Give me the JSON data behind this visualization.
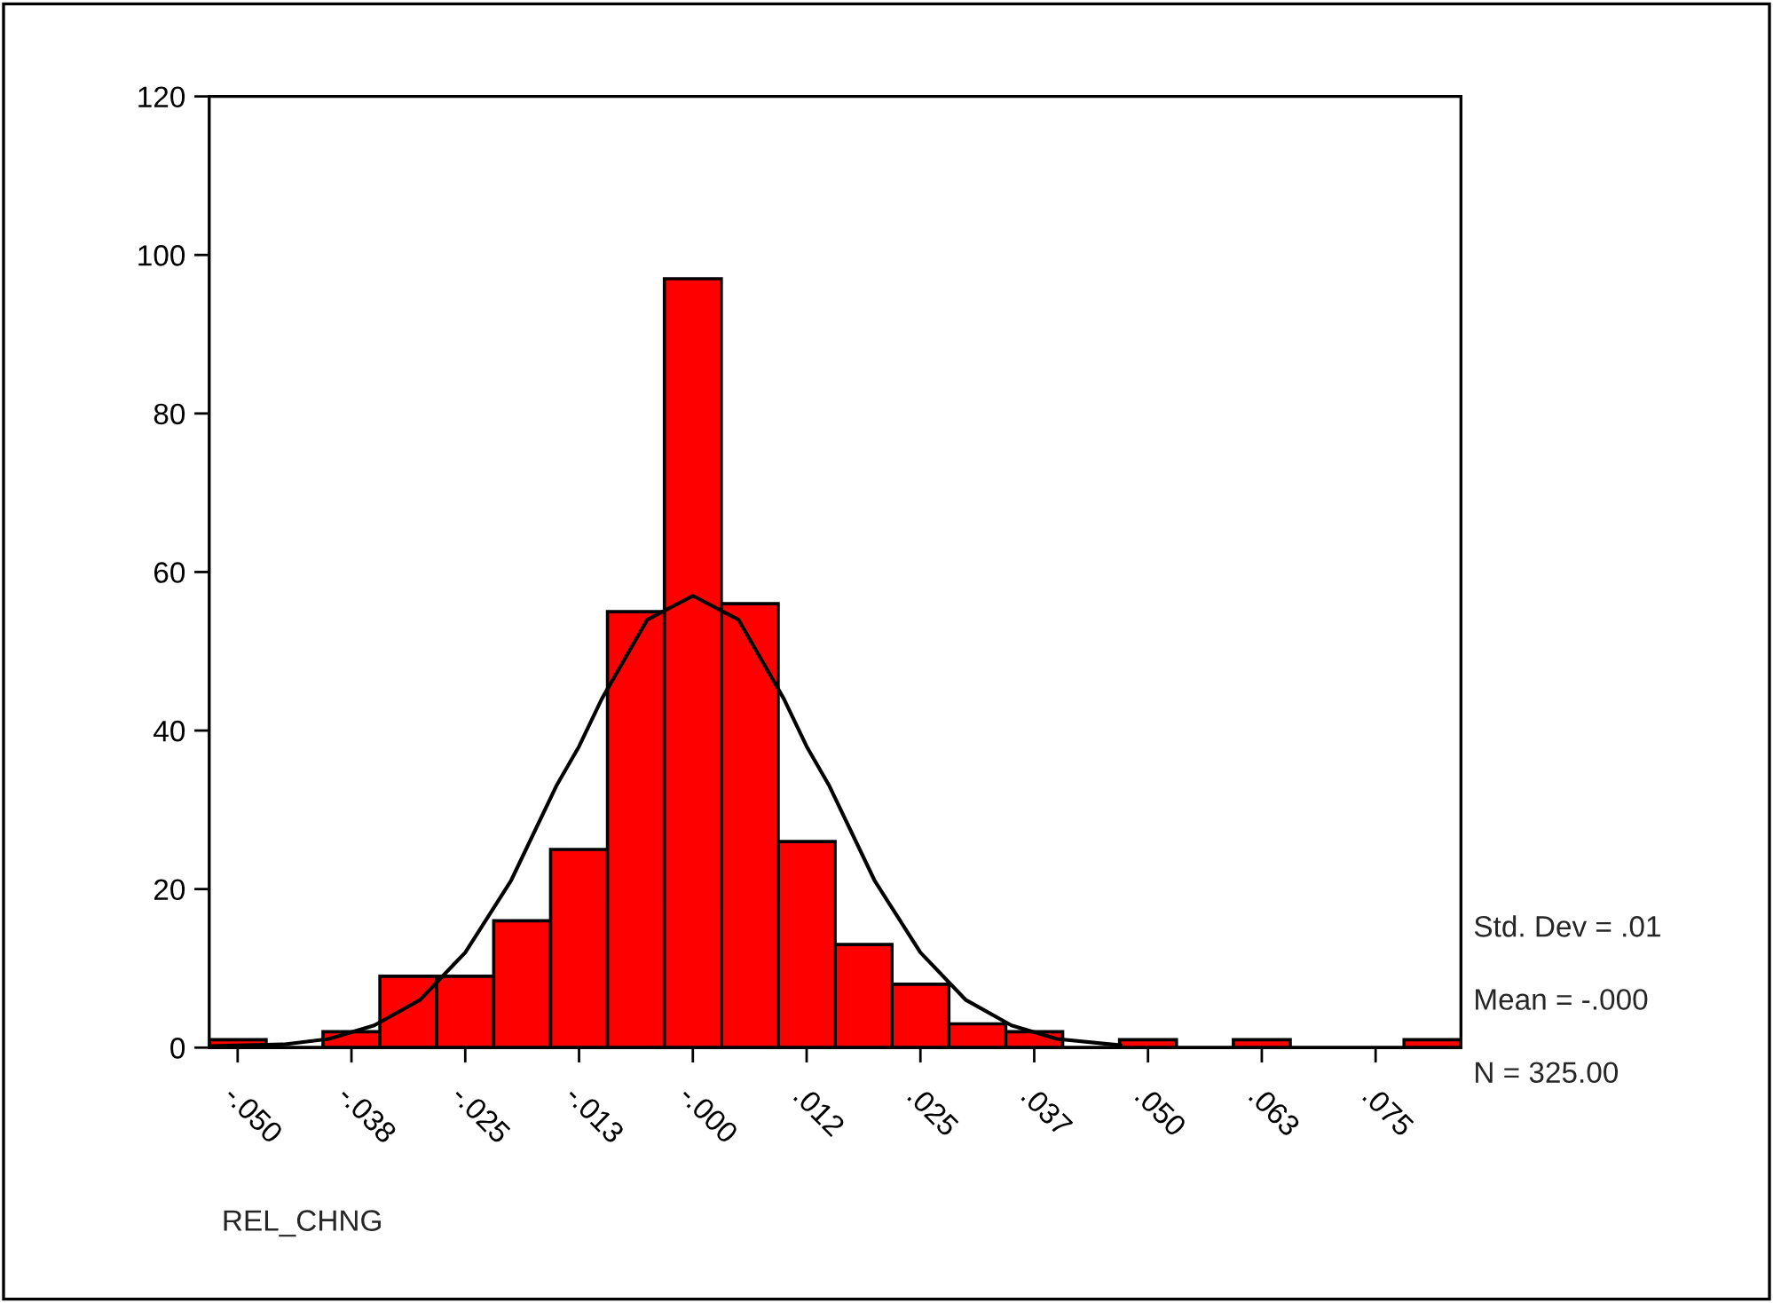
{
  "chart_data": {
    "type": "histogram",
    "xlabel": "REL_CHNG",
    "bins": [
      -0.053125,
      -0.046875,
      -0.040625,
      -0.034375,
      -0.028125,
      -0.021875,
      -0.015625,
      -0.009375,
      -0.003125,
      0.003125,
      0.009375,
      0.015625,
      0.021875,
      0.028125,
      0.034375,
      0.040625,
      0.046875,
      0.053125,
      0.059375,
      0.065625,
      0.071875,
      0.078125,
      0.084375
    ],
    "values": [
      1,
      0,
      2,
      9,
      9,
      16,
      25,
      55,
      97,
      56,
      26,
      13,
      8,
      3,
      2,
      0,
      1,
      0,
      1,
      0,
      0,
      1
    ],
    "color": "#ff0000",
    "series": [
      {
        "type": "line",
        "color": "#000000",
        "x": [
          -0.053,
          -0.045,
          -0.04,
          -0.035,
          -0.03,
          -0.025,
          -0.02,
          -0.015,
          -0.0125,
          -0.01,
          -0.005,
          0,
          0.005,
          0.01,
          0.0125,
          0.015,
          0.02,
          0.025,
          0.03,
          0.035,
          0.04,
          0.047
        ],
        "values": [
          0.2,
          0.4,
          1.1,
          2.8,
          6,
          12,
          21,
          33,
          38,
          44,
          54,
          57,
          54,
          44,
          38,
          33,
          21,
          12,
          6,
          2.8,
          1.1,
          0.3
        ]
      }
    ],
    "xlim": [
      -0.053125,
      0.084375
    ],
    "ylim": [
      0,
      120
    ],
    "xticks": [
      {
        "value": -0.05,
        "label": "-.050"
      },
      {
        "value": -0.0375,
        "label": "-.038"
      },
      {
        "value": -0.025,
        "label": "-.025"
      },
      {
        "value": -0.0125,
        "label": "-.013"
      },
      {
        "value": 0,
        "label": "-.000"
      },
      {
        "value": 0.0125,
        "label": ".012"
      },
      {
        "value": 0.025,
        "label": ".025"
      },
      {
        "value": 0.0375,
        "label": ".037"
      },
      {
        "value": 0.05,
        "label": ".050"
      },
      {
        "value": 0.0625,
        "label": ".063"
      },
      {
        "value": 0.075,
        "label": ".075"
      }
    ],
    "yticks": [
      0,
      20,
      40,
      60,
      80,
      100,
      120
    ],
    "annotations": [
      "Std. Dev = .01",
      "Mean = -.000",
      "N = 325.00"
    ],
    "grid": false,
    "legend": false
  }
}
